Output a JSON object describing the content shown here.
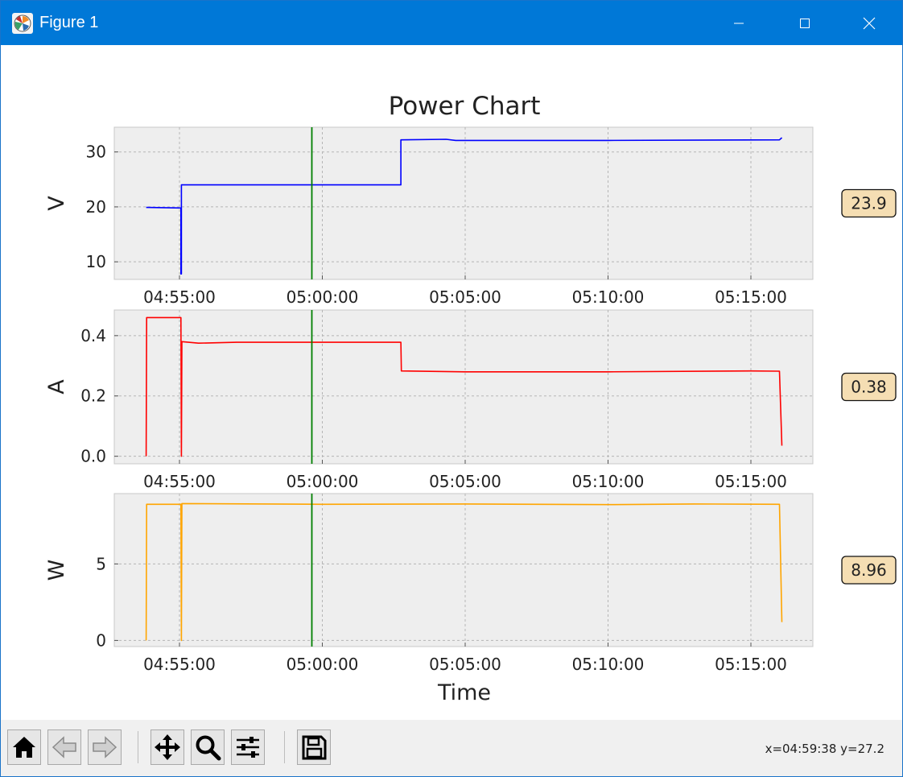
{
  "window": {
    "title": "Figure 1",
    "icon": "matplotlib-icon"
  },
  "window_controls": [
    "minimize-icon",
    "maximize-icon",
    "close-icon"
  ],
  "toolbar": {
    "buttons": [
      "home-icon",
      "back-icon",
      "forward-icon",
      "pan-icon",
      "zoom-icon",
      "configure-subplots-icon",
      "save-icon"
    ],
    "coords": "x=04:59:38 y=27.2"
  },
  "chart_data": {
    "type": "line",
    "title": "Power Chart",
    "xlabel": "Time",
    "x_ticks": [
      "04:55:00",
      "05:00:00",
      "05:05:00",
      "05:10:00",
      "05:15:00"
    ],
    "cursor_time": "04:59:38",
    "cursor_color": "#008000",
    "grid": true,
    "panels": [
      {
        "ylabel": "V",
        "color": "#0000ff",
        "ylim": [
          6.8,
          34.5
        ],
        "y_ticks": [
          "10",
          "20",
          "30"
        ],
        "y_tick_values": [
          10,
          20,
          30
        ],
        "readout": "23.9",
        "series": [
          [
            "04:53:50",
            19.9
          ],
          [
            "04:55:03",
            19.8
          ],
          [
            "04:55:03",
            7.8
          ],
          [
            "04:55:04",
            7.8
          ],
          [
            "04:55:04",
            24.0
          ],
          [
            "05:02:45",
            24.0
          ],
          [
            "05:02:45",
            32.2
          ],
          [
            "05:04:20",
            32.3
          ],
          [
            "05:04:40",
            32.1
          ],
          [
            "05:10:00",
            32.1
          ],
          [
            "05:16:00",
            32.2
          ],
          [
            "05:16:05",
            32.6
          ]
        ]
      },
      {
        "ylabel": "A",
        "color": "#ff0000",
        "ylim": [
          -0.025,
          0.485
        ],
        "y_ticks": [
          "0.0",
          "0.2",
          "0.4"
        ],
        "y_tick_values": [
          0.0,
          0.2,
          0.4
        ],
        "readout": "0.38",
        "series": [
          [
            "04:53:50",
            0.0
          ],
          [
            "04:53:51",
            0.46
          ],
          [
            "04:55:03",
            0.46
          ],
          [
            "04:55:04",
            0.0
          ],
          [
            "04:55:05",
            0.38
          ],
          [
            "04:55:40",
            0.375
          ],
          [
            "04:57:00",
            0.378
          ],
          [
            "05:02:45",
            0.378
          ],
          [
            "05:02:46",
            0.283
          ],
          [
            "05:05:00",
            0.28
          ],
          [
            "05:10:00",
            0.28
          ],
          [
            "05:15:00",
            0.283
          ],
          [
            "05:16:00",
            0.282
          ],
          [
            "05:16:05",
            0.035
          ]
        ]
      },
      {
        "ylabel": "W",
        "color": "#ffa500",
        "ylim": [
          -0.4,
          9.6
        ],
        "y_ticks": [
          "0",
          "5"
        ],
        "y_tick_values": [
          0,
          5
        ],
        "readout": "8.96",
        "series": [
          [
            "04:53:50",
            0.0
          ],
          [
            "04:53:51",
            8.9
          ],
          [
            "04:55:03",
            8.9
          ],
          [
            "04:55:04",
            0.0
          ],
          [
            "04:55:05",
            8.95
          ],
          [
            "05:00:00",
            8.9
          ],
          [
            "05:05:00",
            8.92
          ],
          [
            "05:10:00",
            8.88
          ],
          [
            "05:13:00",
            8.92
          ],
          [
            "05:16:00",
            8.9
          ],
          [
            "05:16:05",
            1.2
          ]
        ]
      }
    ]
  }
}
